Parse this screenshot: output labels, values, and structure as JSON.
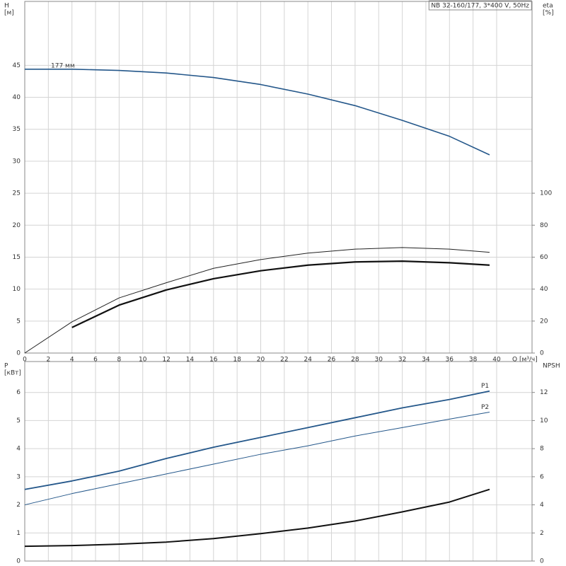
{
  "chart_data": [
    {
      "type": "line",
      "title": "NB 32-160/177, 3*400 V, 50Hz",
      "ylabel": "H",
      "yunit": "[м]",
      "y2label": "eta",
      "y2unit": "[%]",
      "xlabel": "Q [м³/ч]",
      "x": [
        0,
        4,
        8,
        12,
        16,
        20,
        24,
        28,
        32,
        36,
        39.4
      ],
      "xlim": [
        0,
        43
      ],
      "xticks": [
        0,
        2,
        4,
        6,
        8,
        10,
        12,
        14,
        16,
        18,
        20,
        22,
        24,
        26,
        28,
        30,
        32,
        34,
        36,
        38,
        40
      ],
      "ylim": [
        0,
        55
      ],
      "yticks": [
        0,
        5,
        10,
        15,
        20,
        25,
        30,
        35,
        40,
        45
      ],
      "y2lim": [
        0,
        220
      ],
      "y2ticks": [
        0,
        20,
        40,
        60,
        80,
        100
      ],
      "grid": true,
      "xtick_labels": true,
      "series": [
        {
          "name": "177 мм",
          "color": "#24578a",
          "line_width": 1.6,
          "values": [
            44.4,
            44.4,
            44.2,
            43.8,
            43.1,
            42.0,
            40.5,
            38.7,
            36.4,
            33.9,
            31.0
          ]
        },
        {
          "axis": "y2",
          "color": "#222222",
          "line_width": 1,
          "values": [
            0,
            19.5,
            34.5,
            44,
            53,
            58.5,
            62.5,
            65,
            66,
            65,
            63
          ]
        },
        {
          "axis": "y2",
          "color": "#111111",
          "line_width": 2.2,
          "values": [
            null,
            16,
            30,
            39.5,
            46.5,
            51.5,
            55,
            57,
            57.5,
            56.5,
            55
          ]
        }
      ]
    },
    {
      "type": "line",
      "ylabel": "P",
      "yunit": "[кВт]",
      "y2label": "NPSH",
      "x": [
        0,
        4,
        8,
        12,
        16,
        20,
        24,
        28,
        32,
        36,
        39.4
      ],
      "xlim": [
        0,
        43
      ],
      "xticks": [
        0,
        2,
        4,
        6,
        8,
        10,
        12,
        14,
        16,
        18,
        20,
        22,
        24,
        26,
        28,
        30,
        32,
        34,
        36,
        38,
        40
      ],
      "ylim": [
        0,
        7.1
      ],
      "yticks": [
        0,
        1,
        2,
        3,
        4,
        5,
        6
      ],
      "y2lim": [
        0,
        14.2
      ],
      "y2ticks": [
        0,
        2,
        4,
        6,
        8,
        10,
        12
      ],
      "grid": true,
      "xtick_labels": false,
      "series": [
        {
          "name": "P1",
          "color": "#24578a",
          "line_width": 1.8,
          "values": [
            2.55,
            2.85,
            3.2,
            3.65,
            4.05,
            4.4,
            4.75,
            5.1,
            5.45,
            5.75,
            6.05
          ]
        },
        {
          "name": "P2",
          "color": "#24578a",
          "line_width": 1,
          "values": [
            2.0,
            2.4,
            2.75,
            3.1,
            3.45,
            3.8,
            4.1,
            4.45,
            4.75,
            5.05,
            5.3
          ]
        },
        {
          "axis": "y2",
          "color": "#111111",
          "line_width": 2,
          "values": [
            1.05,
            1.1,
            1.2,
            1.35,
            1.6,
            1.95,
            2.35,
            2.85,
            3.5,
            4.2,
            5.1
          ]
        }
      ]
    }
  ]
}
